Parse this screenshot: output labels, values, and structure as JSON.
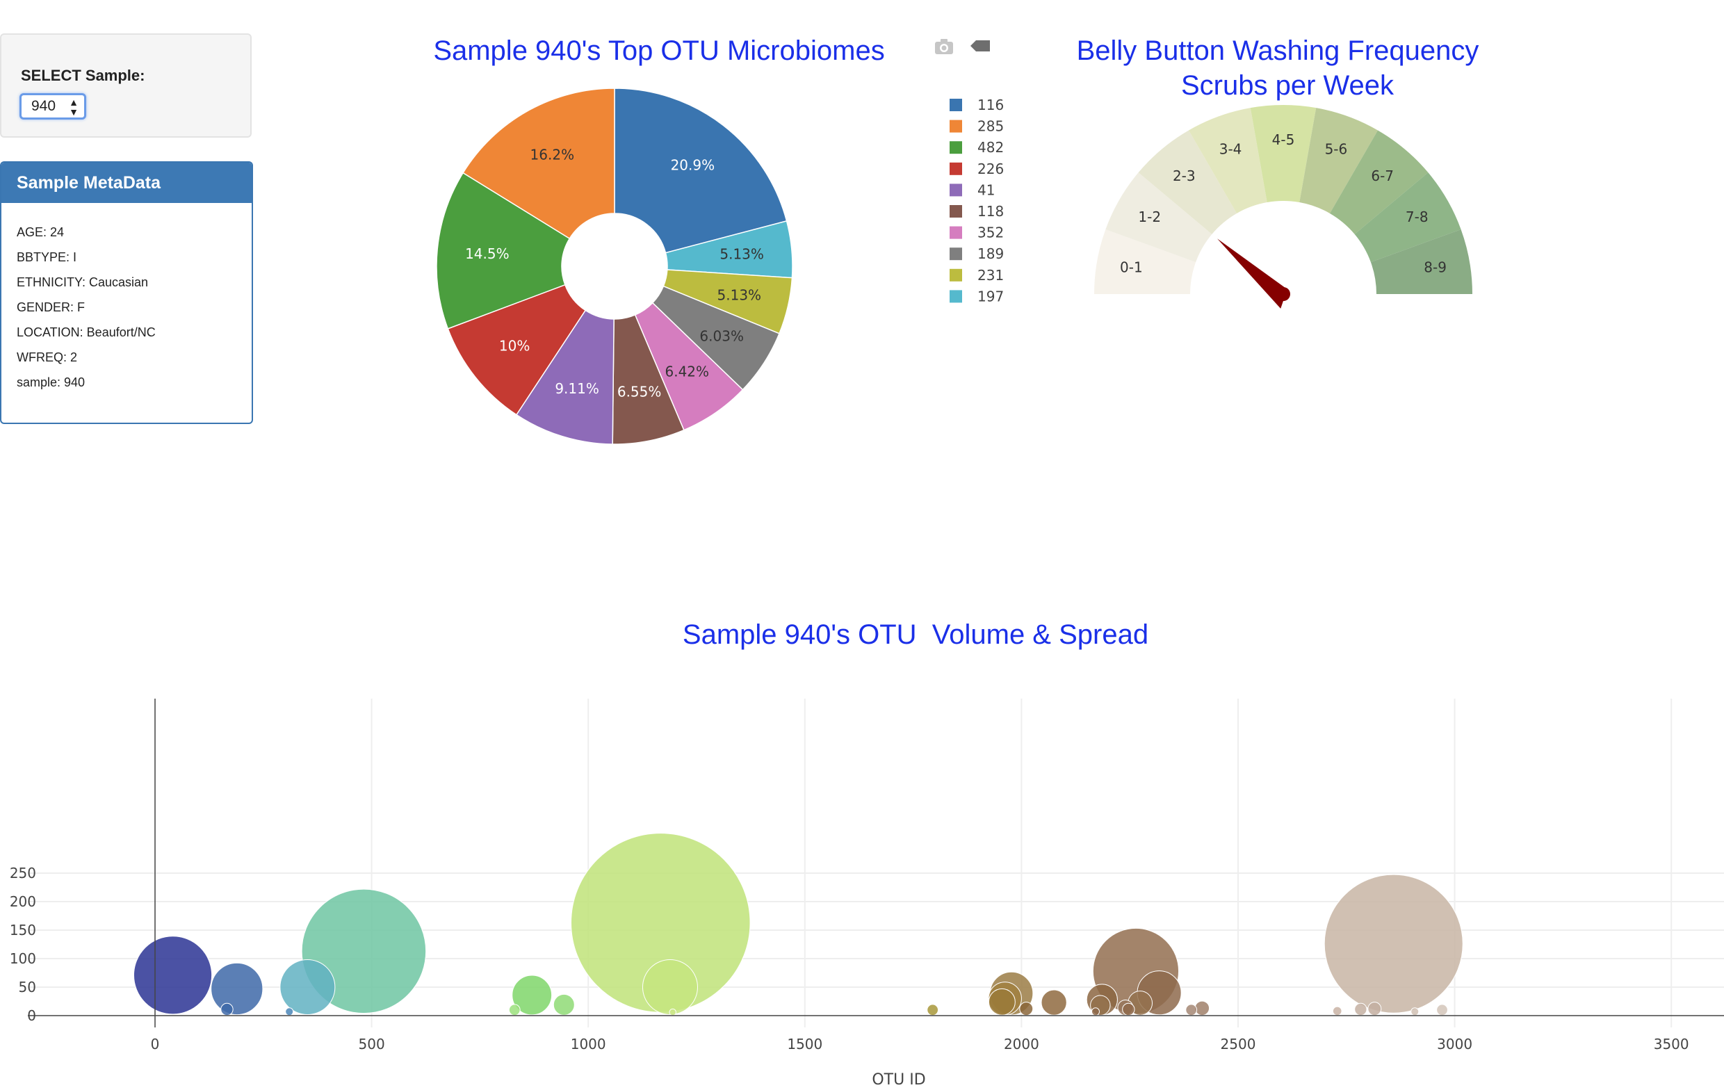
{
  "select": {
    "label": "SELECT Sample:",
    "value": "940"
  },
  "metadata": {
    "header": "Sample MetaData",
    "rows": [
      "AGE: 24",
      "BBTYPE: I",
      "ETHNICITY: Caucasian",
      "GENDER: F",
      "LOCATION: Beaufort/NC",
      "WFREQ: 2",
      "sample: 940"
    ]
  },
  "toolbar": {
    "icons": [
      "camera-icon",
      "tag-icon"
    ]
  },
  "colors": {
    "title": "#1a2fe8",
    "meta_header": "#3d79b4",
    "needle": "#850000"
  },
  "chart_data": [
    {
      "type": "pie",
      "title": "Sample 940's Top OTU Microbiomes",
      "hole": true,
      "labels": [
        "116",
        "285",
        "482",
        "226",
        "41",
        "118",
        "352",
        "189",
        "231",
        "197"
      ],
      "values": [
        20.9,
        16.2,
        14.5,
        10,
        9.11,
        6.55,
        6.42,
        6.03,
        5.13,
        5.13
      ],
      "value_labels": [
        "20.9%",
        "16.2%",
        "14.5%",
        "10%",
        "9.11%",
        "6.55%",
        "6.42%",
        "6.03%",
        "5.13%",
        "5.13%"
      ],
      "slice_order_clockwise_from_top": [
        0,
        9,
        8,
        7,
        6,
        5,
        4,
        3,
        2,
        1
      ],
      "colors": [
        "#3a75b0",
        "#ef8636",
        "#4b9e3e",
        "#c53a32",
        "#8e6bb8",
        "#84584e",
        "#d57dbf",
        "#7f7f7f",
        "#bcbc3f",
        "#55b9cd"
      ],
      "legend_placement": "right"
    },
    {
      "type": "gauge",
      "title": "Belly Button Washing Frequency",
      "subtitle": "Scrubs per Week",
      "sectors": [
        "0-1",
        "1-2",
        "2-3",
        "3-4",
        "4-5",
        "5-6",
        "6-7",
        "7-8",
        "8-9"
      ],
      "sector_colors": [
        "#f6f2ea",
        "#efede1",
        "#e7e7d1",
        "#e3e7bf",
        "#d5e3a4",
        "#bccb98",
        "#9cbb8a",
        "#8fb588",
        "#8aac85"
      ],
      "value": 2,
      "range": [
        0,
        9
      ]
    },
    {
      "type": "scatter",
      "title": "Sample 940's OTU  Volume & Spread",
      "xlabel": "OTU ID",
      "ylabel": "",
      "xlim": [
        -250,
        3600
      ],
      "ylim": [
        -12,
        275
      ],
      "xticks": [
        0,
        500,
        1000,
        1500,
        2000,
        2500,
        3000,
        3500
      ],
      "yticks": [
        0,
        50,
        100,
        150,
        200,
        250
      ],
      "grid": true,
      "points": [
        {
          "x": 41,
          "y": 71,
          "color": "#2b3494"
        },
        {
          "x": 189,
          "y": 47,
          "color": "#3e69a8"
        },
        {
          "x": 352,
          "y": 50,
          "color": "#62b2c2"
        },
        {
          "x": 482,
          "y": 113,
          "color": "#6fc6a2"
        },
        {
          "x": 166,
          "y": 11,
          "color": "#3e69a8"
        },
        {
          "x": 310,
          "y": 7,
          "color": "#4a86b8"
        },
        {
          "x": 870,
          "y": 36,
          "color": "#7fd66a"
        },
        {
          "x": 944,
          "y": 19,
          "color": "#8fdb75"
        },
        {
          "x": 830,
          "y": 10,
          "color": "#9be07c"
        },
        {
          "x": 1167,
          "y": 163,
          "color": "#c0e379"
        },
        {
          "x": 1189,
          "y": 50,
          "color": "#c6e57f"
        },
        {
          "x": 1195,
          "y": 6,
          "color": "#cde68a"
        },
        {
          "x": 1795,
          "y": 10,
          "color": "#a8983a"
        },
        {
          "x": 1977,
          "y": 39,
          "color": "#9b7d45"
        },
        {
          "x": 1962,
          "y": 30,
          "color": "#a1803f"
        },
        {
          "x": 1955,
          "y": 24,
          "color": "#9a7a38"
        },
        {
          "x": 2011,
          "y": 12,
          "color": "#8b6639"
        },
        {
          "x": 2075,
          "y": 23,
          "color": "#8f6a3f"
        },
        {
          "x": 2186,
          "y": 28,
          "color": "#8c6642"
        },
        {
          "x": 2182,
          "y": 18,
          "color": "#93704b"
        },
        {
          "x": 2264,
          "y": 78,
          "color": "#936e50"
        },
        {
          "x": 2318,
          "y": 40,
          "color": "#8e6a4c"
        },
        {
          "x": 2274,
          "y": 22,
          "color": "#94724f"
        },
        {
          "x": 2240,
          "y": 14,
          "color": "#98765a"
        },
        {
          "x": 2247,
          "y": 11,
          "color": "#8f6a4b"
        },
        {
          "x": 2417,
          "y": 13,
          "color": "#a0806a"
        },
        {
          "x": 2392,
          "y": 10,
          "color": "#a58774"
        },
        {
          "x": 2171,
          "y": 7,
          "color": "#8e6a4c"
        },
        {
          "x": 2859,
          "y": 126,
          "color": "#c8b5a5"
        },
        {
          "x": 2729,
          "y": 8,
          "color": "#c9b3a4"
        },
        {
          "x": 2783,
          "y": 11,
          "color": "#c4b0a2"
        },
        {
          "x": 2815,
          "y": 12,
          "color": "#c3aea0"
        },
        {
          "x": 2908,
          "y": 7,
          "color": "#d0c0b3"
        },
        {
          "x": 2971,
          "y": 10,
          "color": "#d4c6ba"
        }
      ]
    }
  ]
}
